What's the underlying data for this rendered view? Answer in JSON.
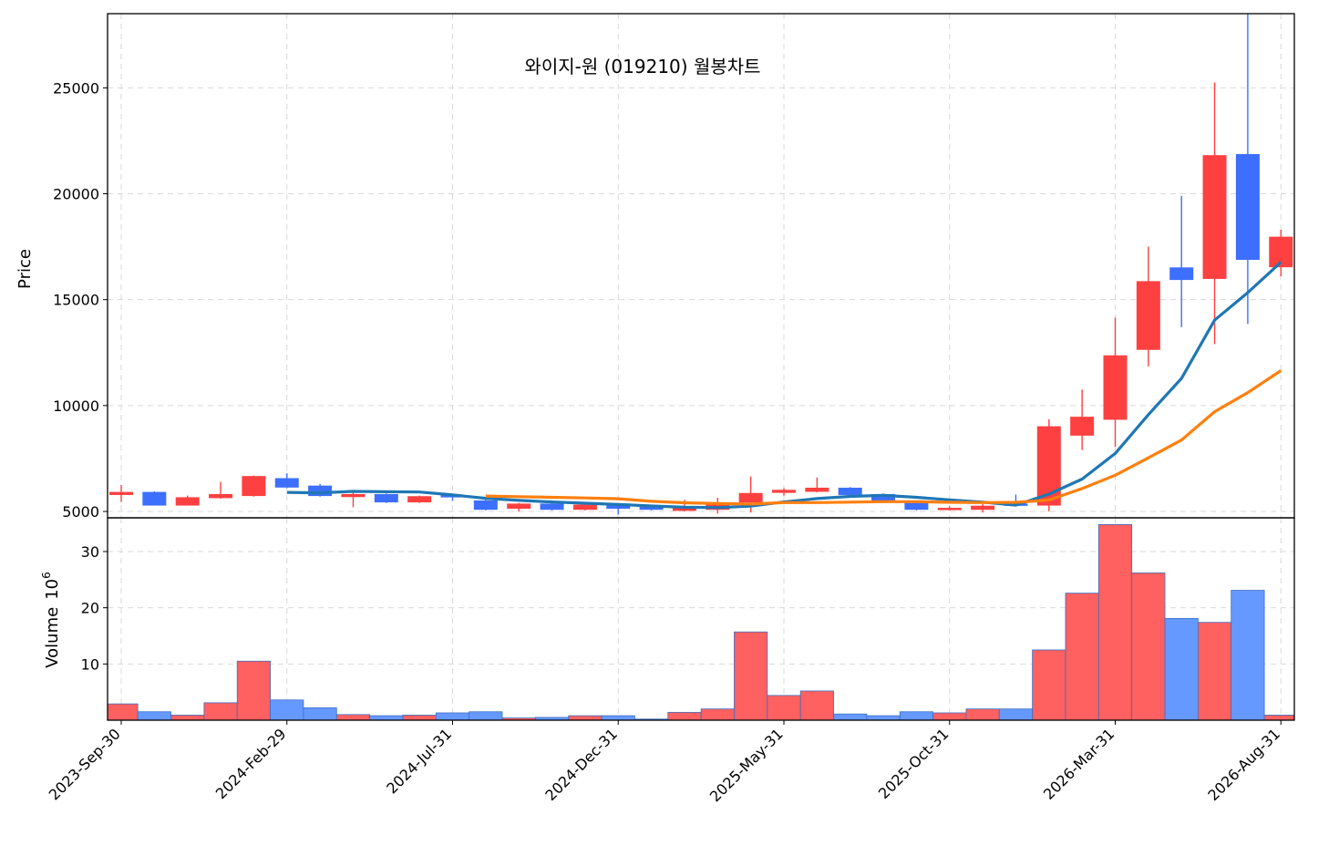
{
  "chart_data": {
    "type": "candlestick",
    "title": "와이지-원 (019210) 월봉차트",
    "ylabel_price": "Price",
    "ylabel_volume": "Volume",
    "volume_unit_base": "10",
    "volume_unit_exp": "6",
    "price_ylim": [
      4700,
      28500
    ],
    "volume_ylim": [
      0,
      36
    ],
    "price_yticks": [
      5000,
      10000,
      15000,
      20000,
      25000
    ],
    "volume_yticks": [
      10,
      20,
      30
    ],
    "x_tick_labels": [
      {
        "index": 0,
        "label": "2023-Sep-30"
      },
      {
        "index": 5,
        "label": "2024-Feb-29"
      },
      {
        "index": 10,
        "label": "2024-Jul-31"
      },
      {
        "index": 15,
        "label": "2024-Dec-31"
      },
      {
        "index": 20,
        "label": "2025-May-31"
      },
      {
        "index": 25,
        "label": "2025-Oct-31"
      },
      {
        "index": 30,
        "label": "2026-Mar-31"
      },
      {
        "index": 35,
        "label": "2026-Aug-31"
      }
    ],
    "colors": {
      "up": "#ff4040",
      "down": "#3d6fff",
      "vol_up": "#ff6060",
      "vol_down": "#6699ff",
      "ma_short": "#1f77b4",
      "ma_long": "#ff7f0e"
    },
    "candles": [
      {
        "o": 5800,
        "h": 6250,
        "l": 5450,
        "c": 5900,
        "v": 2.9
      },
      {
        "o": 5900,
        "h": 5950,
        "l": 5300,
        "c": 5300,
        "v": 1.5
      },
      {
        "o": 5300,
        "h": 5750,
        "l": 5300,
        "c": 5650,
        "v": 0.9
      },
      {
        "o": 5650,
        "h": 6400,
        "l": 5600,
        "c": 5800,
        "v": 3.1
      },
      {
        "o": 5750,
        "h": 6700,
        "l": 5700,
        "c": 6650,
        "v": 10.5
      },
      {
        "o": 6550,
        "h": 6800,
        "l": 6100,
        "c": 6150,
        "v": 3.6
      },
      {
        "o": 6200,
        "h": 6300,
        "l": 5700,
        "c": 5750,
        "v": 2.2
      },
      {
        "o": 5700,
        "h": 5900,
        "l": 5200,
        "c": 5800,
        "v": 1.0
      },
      {
        "o": 5800,
        "h": 5850,
        "l": 5400,
        "c": 5450,
        "v": 0.8
      },
      {
        "o": 5450,
        "h": 5750,
        "l": 5400,
        "c": 5700,
        "v": 0.9
      },
      {
        "o": 5750,
        "h": 5800,
        "l": 5500,
        "c": 5700,
        "v": 1.3
      },
      {
        "o": 5500,
        "h": 5550,
        "l": 5050,
        "c": 5100,
        "v": 1.5
      },
      {
        "o": 5150,
        "h": 5400,
        "l": 5000,
        "c": 5350,
        "v": 0.4
      },
      {
        "o": 5350,
        "h": 5400,
        "l": 5050,
        "c": 5100,
        "v": 0.5
      },
      {
        "o": 5100,
        "h": 5400,
        "l": 5050,
        "c": 5300,
        "v": 0.8
      },
      {
        "o": 5350,
        "h": 5400,
        "l": 4850,
        "c": 5150,
        "v": 0.8
      },
      {
        "o": 5200,
        "h": 5250,
        "l": 5050,
        "c": 5100,
        "v": 0.2
      },
      {
        "o": 5050,
        "h": 5550,
        "l": 5000,
        "c": 5150,
        "v": 1.4
      },
      {
        "o": 5100,
        "h": 5650,
        "l": 4900,
        "c": 5400,
        "v": 2.0
      },
      {
        "o": 5450,
        "h": 6650,
        "l": 4950,
        "c": 5850,
        "v": 15.7
      },
      {
        "o": 5900,
        "h": 6100,
        "l": 5750,
        "c": 6000,
        "v": 4.4
      },
      {
        "o": 5950,
        "h": 6600,
        "l": 5900,
        "c": 6100,
        "v": 5.2
      },
      {
        "o": 6100,
        "h": 6150,
        "l": 5650,
        "c": 5800,
        "v": 1.1
      },
      {
        "o": 5800,
        "h": 5850,
        "l": 5400,
        "c": 5450,
        "v": 0.8
      },
      {
        "o": 5400,
        "h": 5450,
        "l": 5050,
        "c": 5100,
        "v": 1.5
      },
      {
        "o": 5100,
        "h": 5250,
        "l": 5050,
        "c": 5150,
        "v": 1.3
      },
      {
        "o": 5100,
        "h": 5350,
        "l": 4950,
        "c": 5250,
        "v": 2.0
      },
      {
        "o": 5350,
        "h": 5800,
        "l": 5250,
        "c": 5300,
        "v": 2.0
      },
      {
        "o": 5300,
        "h": 9350,
        "l": 5000,
        "c": 9000,
        "v": 12.5
      },
      {
        "o": 8600,
        "h": 10750,
        "l": 7900,
        "c": 9450,
        "v": 22.6
      },
      {
        "o": 9350,
        "h": 14150,
        "l": 8050,
        "c": 12350,
        "v": 34.8
      },
      {
        "o": 12650,
        "h": 17500,
        "l": 11850,
        "c": 15850,
        "v": 26.2
      },
      {
        "o": 16500,
        "h": 19900,
        "l": 13700,
        "c": 15950,
        "v": 18.1
      },
      {
        "o": 16000,
        "h": 25250,
        "l": 12900,
        "c": 21800,
        "v": 17.4
      },
      {
        "o": 21850,
        "h": 28500,
        "l": 13850,
        "c": 16900,
        "v": 23.1
      },
      {
        "o": 16550,
        "h": 18300,
        "l": 16100,
        "c": 17950,
        "v": 0.9
      }
    ],
    "series": [
      {
        "values": [
          null,
          null,
          null,
          null,
          null,
          5900,
          5880,
          5950,
          5930,
          5920,
          5780,
          5620,
          5520,
          5450,
          5390,
          5330,
          5260,
          5200,
          5180,
          5250,
          5450,
          5610,
          5710,
          5760,
          5670,
          5550,
          5440,
          5300,
          5820,
          6530,
          7740,
          9570,
          11280,
          14030,
          15330,
          16770
        ]
      },
      {
        "values": [
          null,
          null,
          null,
          null,
          null,
          null,
          null,
          null,
          null,
          null,
          null,
          5730,
          5700,
          5670,
          5640,
          5600,
          5480,
          5410,
          5370,
          5350,
          5420,
          5420,
          5440,
          5460,
          5460,
          5430,
          5420,
          5430,
          5540,
          6080,
          6710,
          7530,
          8370,
          9710,
          10610,
          11650
        ]
      }
    ]
  }
}
